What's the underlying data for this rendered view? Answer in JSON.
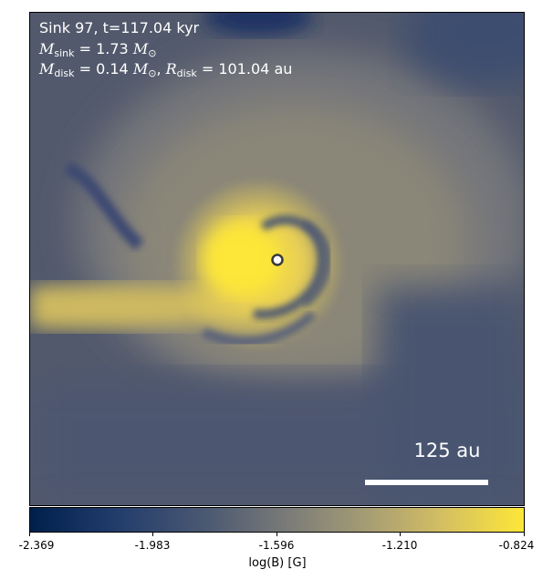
{
  "figure": {
    "title_line": "Sink 97, t=117.04 kyr",
    "msink": {
      "symbol": "M",
      "sub": "sink",
      "value": "1.73",
      "unit": "M",
      "unit_sub": "⊙"
    },
    "mdisk": {
      "symbol": "M",
      "sub": "disk",
      "value": "0.14",
      "unit": "M",
      "unit_sub": "⊙"
    },
    "rdisk": {
      "symbol": "R",
      "sub": "disk",
      "value": "101.04",
      "unit": "au"
    },
    "scale_bar_label": "125 au"
  },
  "colorbar": {
    "label": "log(B) [G]",
    "ticks": [
      "-2.369",
      "-1.983",
      "-1.596",
      "-1.210",
      "-0.824"
    ],
    "colormap": [
      "#00204c",
      "#4c5972",
      "#7a7b78",
      "#d5c062",
      "#fde737"
    ]
  }
}
